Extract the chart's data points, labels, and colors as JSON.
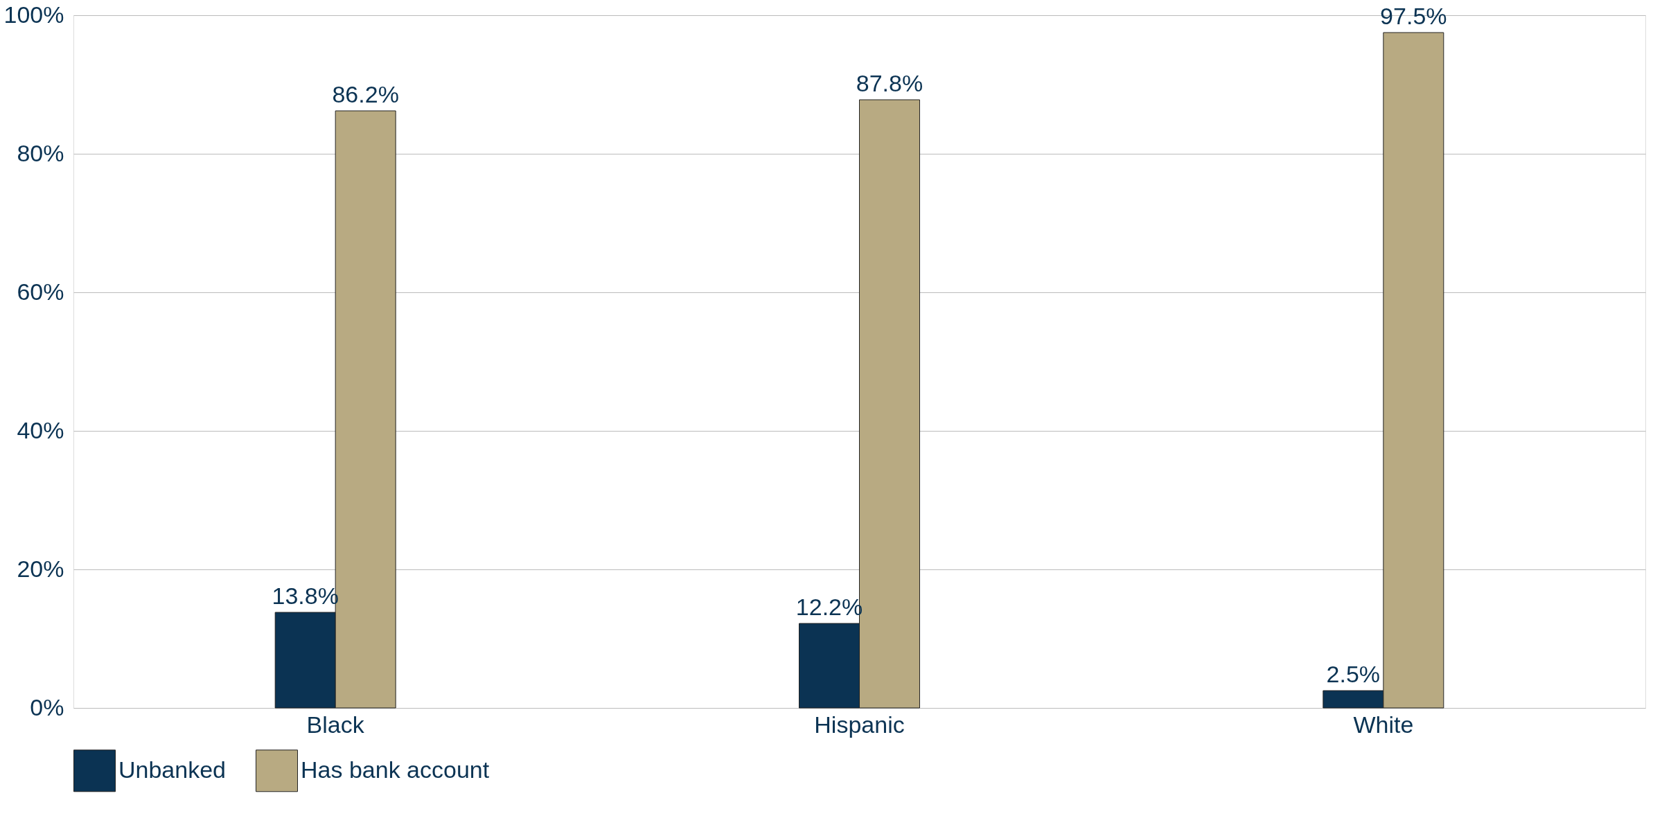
{
  "chart_data": {
    "type": "bar",
    "categories": [
      "Black",
      "Hispanic",
      "White"
    ],
    "series": [
      {
        "name": "Unbanked",
        "color": "#0b3353",
        "values": [
          13.8,
          12.2,
          2.5
        ],
        "value_labels": [
          "13.8%",
          "12.2%",
          "2.5%"
        ]
      },
      {
        "name": "Has bank account",
        "color": "#b8aa82",
        "values": [
          86.2,
          87.8,
          97.5
        ],
        "value_labels": [
          "86.2%",
          "87.8%",
          "97.5%"
        ]
      }
    ],
    "ylim": [
      0,
      100
    ],
    "yticks": [
      {
        "value": 0,
        "label": "0%"
      },
      {
        "value": 20,
        "label": "20%"
      },
      {
        "value": 40,
        "label": "40%"
      },
      {
        "value": 60,
        "label": "60%"
      },
      {
        "value": 80,
        "label": "80%"
      },
      {
        "value": 100,
        "label": "100%"
      }
    ],
    "grid": "y",
    "legend": "bottom"
  }
}
